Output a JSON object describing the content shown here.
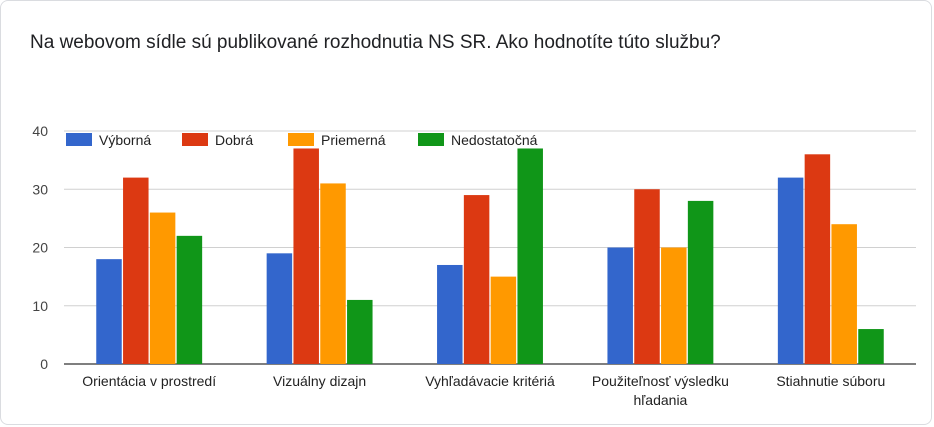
{
  "chart_data": {
    "type": "bar",
    "title": "Na webovom sídle sú publikované rozhodnutia NS SR. Ako hodnotíte túto službu?",
    "categories": [
      [
        "Orientácia v prostredí"
      ],
      [
        "Vizuálny dizajn"
      ],
      [
        "Vyhľadávacie kritériá"
      ],
      [
        "Použiteľnosť výsledku",
        "hľadania"
      ],
      [
        "Stiahnutie súboru"
      ]
    ],
    "series": [
      {
        "name": "Výborná",
        "color": "#3366cc",
        "values": [
          18,
          19,
          17,
          20,
          32
        ]
      },
      {
        "name": "Dobrá",
        "color": "#dc3912",
        "values": [
          32,
          37,
          29,
          30,
          36
        ]
      },
      {
        "name": "Priemerná",
        "color": "#ff9900",
        "values": [
          26,
          31,
          15,
          20,
          24
        ]
      },
      {
        "name": "Nedostatočná",
        "color": "#109618",
        "values": [
          22,
          11,
          37,
          28,
          6
        ]
      }
    ],
    "yticks": [
      0,
      10,
      20,
      30,
      40
    ],
    "ylim": [
      0,
      40
    ],
    "grid": true,
    "legend": "top-left"
  }
}
